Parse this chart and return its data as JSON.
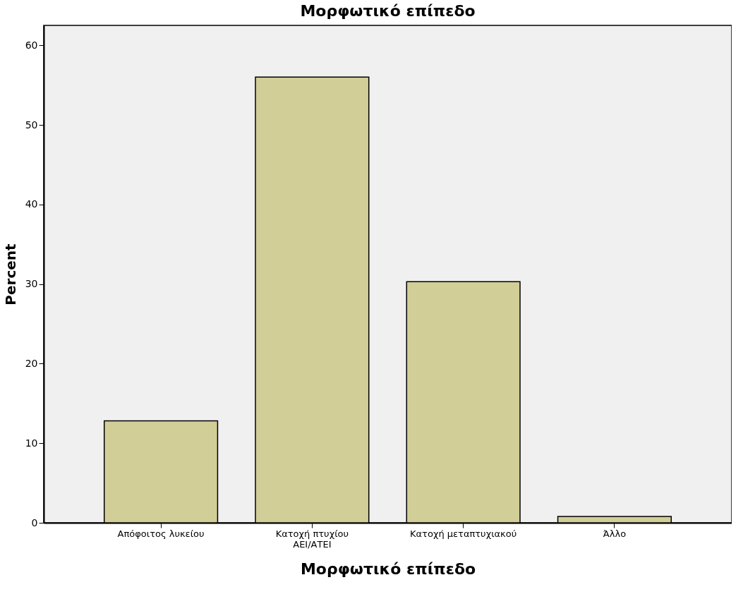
{
  "chart_data": {
    "type": "bar",
    "title": "Μορφωτικό επίπεδο",
    "xlabel": "Μορφωτικό επίπεδο",
    "ylabel": "Percent",
    "categories": [
      "Απόφοιτος λυκείου",
      "Κατοχή πτυχίου ΑΕΙ/ΑΤΕΙ",
      "Κατοχή μεταπτυχιακού",
      "Άλλο"
    ],
    "values": [
      12.8,
      56.0,
      30.3,
      0.8
    ],
    "color": "#d2ce98",
    "ylim": [
      0,
      62.5
    ],
    "yticks": [
      0,
      10,
      20,
      30,
      40,
      50,
      60
    ],
    "grid": false
  }
}
